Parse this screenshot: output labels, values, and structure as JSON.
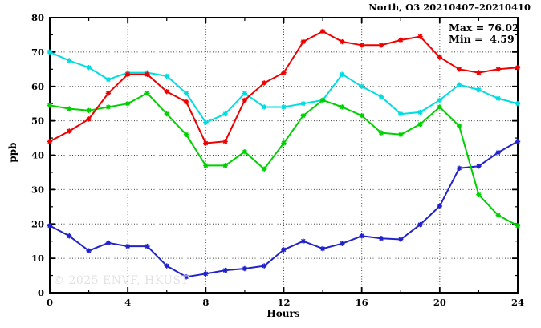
{
  "window": {
    "title": "North, O3 20210407–20210410"
  },
  "watermark": "© 2025 ENVF, HKUST",
  "chart_data": {
    "type": "line",
    "title": "North, O3 20210407–20210410",
    "xlabel": "Hours",
    "ylabel": "ppb",
    "xlim": [
      0,
      24
    ],
    "ylim": [
      0,
      80
    ],
    "x_major_ticks": [
      0,
      4,
      8,
      12,
      16,
      20,
      24
    ],
    "x_minor_step": 2,
    "y_major_ticks": [
      0,
      10,
      20,
      30,
      40,
      50,
      60,
      70,
      80
    ],
    "y_minor_step": 5,
    "grid": "dotted-at-major-ticks",
    "legend_position": "top-right-inside",
    "annotations": {
      "max_label": "Max = 76.02",
      "min_label": "Min =  4.59",
      "max_value": 76.02,
      "min_value": 4.59
    },
    "marker": "asterisk",
    "x": [
      0,
      1,
      2,
      3,
      4,
      5,
      6,
      7,
      8,
      9,
      10,
      11,
      12,
      13,
      14,
      15,
      16,
      17,
      18,
      19,
      20,
      21,
      22,
      23,
      24
    ],
    "series": [
      {
        "name": "cyan-series",
        "color": "#00dde0",
        "values": [
          70,
          67.5,
          65.5,
          62,
          64,
          64,
          63,
          58,
          49.5,
          52,
          58,
          54,
          54,
          55,
          56,
          63.5,
          60,
          57,
          52,
          52.5,
          56,
          60.5,
          59,
          56.5,
          55
        ]
      },
      {
        "name": "blue-series",
        "color": "#2222cc",
        "values": [
          19.5,
          16.5,
          12.2,
          14.5,
          13.5,
          13.5,
          7.8,
          4.59,
          5.5,
          6.5,
          7,
          7.8,
          12.5,
          15,
          12.8,
          14.3,
          16.5,
          15.8,
          15.5,
          19.8,
          25.2,
          36.2,
          36.8,
          40.8,
          44
        ]
      },
      {
        "name": "green-series",
        "color": "#00d000",
        "values": [
          54.5,
          53.5,
          53,
          54,
          55,
          58,
          52,
          46,
          37,
          37,
          41,
          36,
          43.5,
          51.5,
          56,
          54,
          51.5,
          46.5,
          46,
          49,
          54,
          48.5,
          28.5,
          22.5,
          19.5
        ]
      },
      {
        "name": "red-series",
        "color": "#ee0000",
        "values": [
          44,
          47,
          50.5,
          58,
          63.5,
          63.5,
          58.5,
          55.5,
          43.5,
          44,
          56,
          61,
          64,
          73,
          76.02,
          73,
          72,
          72,
          73.5,
          74.5,
          68.5,
          65,
          64,
          65,
          65.5
        ]
      }
    ]
  }
}
